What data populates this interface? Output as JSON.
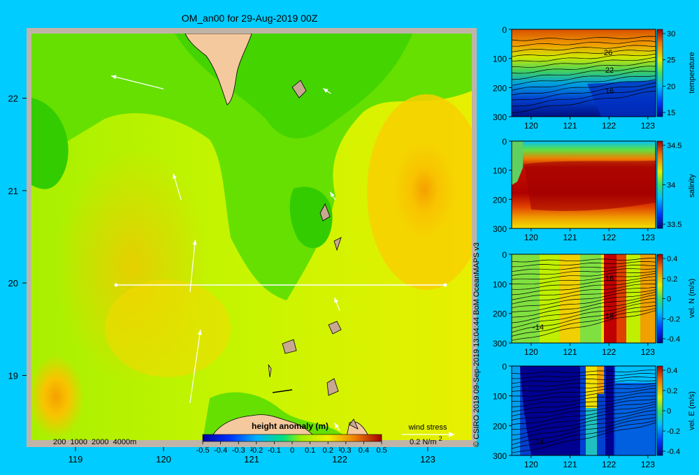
{
  "title": "OM_an00 for 29-Aug-2019 00Z",
  "credit": "© CSIRO 2019  09-Sep-2019 13:04:44 BoM OceanMAPS v3",
  "colors": {
    "background": "#00ccff",
    "frame": "#c0b4a8",
    "land": "#f5c99e",
    "shelf": "#c8a890"
  },
  "chart_data": [
    {
      "type": "heatmap",
      "name": "sea surface height anomaly map",
      "xlim": [
        118.5,
        123.5
      ],
      "ylim": [
        18.3,
        22.7
      ],
      "x_ticks": [
        "119",
        "120",
        "121",
        "122",
        "123"
      ],
      "y_ticks": [
        "19",
        "20",
        "21",
        "22"
      ],
      "depth_legend": "200  1000  2000  4000m",
      "section_line": {
        "lat": 20,
        "lon_start": 119.5,
        "lon_end": 123.2
      },
      "colorbar": {
        "title": "height anomaly (m)",
        "ticks": [
          "-0.5",
          "-0.4",
          "-0.3",
          "-0.2",
          "-0.1",
          "0",
          "0.1",
          "0.2",
          "0.3",
          "0.4",
          "0.5"
        ],
        "range": [
          -0.5,
          0.5
        ]
      },
      "wind_legend": {
        "label": "wind stress",
        "value_text": "0.2 N/m",
        "superscript": "2"
      },
      "regions": [
        {
          "lon": 122.6,
          "lat": 20.9,
          "value": 0.25
        },
        {
          "lon": 119.3,
          "lat": 21.6,
          "value": -0.05
        },
        {
          "lon": 121.0,
          "lat": 22.2,
          "value": -0.05
        },
        {
          "lon": 118.8,
          "lat": 18.8,
          "value": 0.2
        },
        {
          "lon": 120.1,
          "lat": 20.7,
          "value": 0.15
        },
        {
          "lon": 121.2,
          "lat": 19.8,
          "value": 0.05
        }
      ],
      "wind_vectors": [
        {
          "lon": 120.0,
          "lat": 22.1,
          "u": -0.2,
          "v": 0.05
        },
        {
          "lon": 121.9,
          "lat": 22.05,
          "u": -0.03,
          "v": 0.02
        },
        {
          "lon": 120.2,
          "lat": 20.9,
          "u": -0.03,
          "v": 0.1
        },
        {
          "lon": 120.3,
          "lat": 19.9,
          "u": 0.02,
          "v": 0.2
        },
        {
          "lon": 121.95,
          "lat": 20.9,
          "u": -0.02,
          "v": 0.03
        },
        {
          "lon": 122.0,
          "lat": 19.7,
          "u": -0.02,
          "v": 0.05
        },
        {
          "lon": 120.3,
          "lat": 18.7,
          "u": 0.04,
          "v": 0.28
        },
        {
          "lon": 122.0,
          "lat": 18.4,
          "u": -0.02,
          "v": 0.03
        }
      ]
    },
    {
      "type": "heatmap",
      "name": "temperature section",
      "ylabel": "temperature",
      "x_ticks": [
        "120",
        "121",
        "122",
        "123"
      ],
      "y_ticks": [
        "0",
        "100",
        "200",
        "300"
      ],
      "colorbar_ticks": [
        "30",
        "25",
        "20",
        "15"
      ],
      "range": [
        14,
        31
      ],
      "contour_labels": [
        "26",
        "22",
        "16"
      ]
    },
    {
      "type": "heatmap",
      "name": "salinity section",
      "ylabel": "salinity",
      "x_ticks": [
        "120",
        "121",
        "122",
        "123"
      ],
      "y_ticks": [
        "0",
        "100",
        "200",
        "300"
      ],
      "colorbar_ticks": [
        "34.5",
        "34",
        "33.5"
      ],
      "range": [
        33.4,
        34.9
      ]
    },
    {
      "type": "heatmap",
      "name": "northward velocity section",
      "ylabel": "vel. N (m/s)",
      "x_ticks": [
        "120",
        "121",
        "122",
        "123"
      ],
      "y_ticks": [
        "0",
        "100",
        "200",
        "300"
      ],
      "colorbar_ticks": [
        "0.4",
        "0.2",
        "0",
        "-0.2",
        "-0.4"
      ],
      "range": [
        -0.45,
        0.45
      ],
      "contour_labels": [
        "-14",
        "16",
        "18"
      ]
    },
    {
      "type": "heatmap",
      "name": "eastward velocity section",
      "ylabel": "vel. E (m/s)",
      "x_ticks": [
        "120",
        "121",
        "122",
        "123"
      ],
      "y_ticks": [
        "0",
        "100",
        "200",
        "300"
      ],
      "colorbar_ticks": [
        "0.4",
        "0.2",
        "0",
        "-0.2",
        "-0.4"
      ],
      "range": [
        -0.45,
        0.45
      ],
      "contour_labels": [
        "-14"
      ]
    }
  ]
}
